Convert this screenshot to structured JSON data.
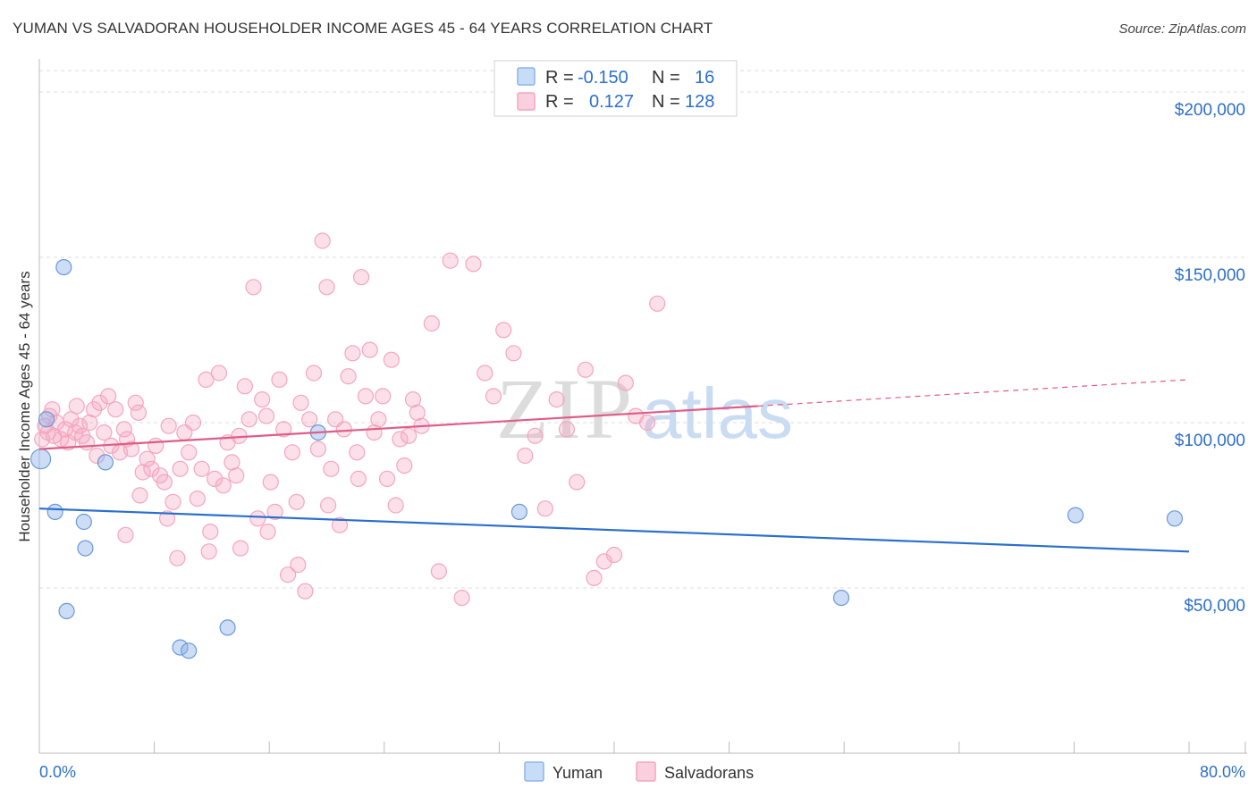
{
  "title": "YUMAN VS SALVADORAN HOUSEHOLDER INCOME AGES 45 - 64 YEARS CORRELATION CHART",
  "source": "Source: ZipAtlas.com",
  "watermark": {
    "zip": "ZIP",
    "atlas": "atlas"
  },
  "chart_data": {
    "type": "scatter",
    "title": "YUMAN VS SALVADORAN HOUSEHOLDER INCOME AGES 45 - 64 YEARS CORRELATION CHART",
    "xlabel": "",
    "ylabel": "Householder Income Ages 45 - 64 years",
    "xlim": [
      0,
      80
    ],
    "ylim": [
      0,
      210000
    ],
    "x_tick_labels": [
      "0.0%",
      "80.0%"
    ],
    "y_ticks": [
      {
        "value": 50000,
        "label": "$50,000"
      },
      {
        "value": 100000,
        "label": "$100,000"
      },
      {
        "value": 150000,
        "label": "$150,000"
      },
      {
        "value": 200000,
        "label": "$200,000"
      }
    ],
    "legend_stats": [
      {
        "r_label": "R =",
        "r_value": "-0.150",
        "n_label": "N =",
        "n_value": "16"
      },
      {
        "r_label": "R =",
        "r_value": "0.127",
        "n_label": "N =",
        "n_value": "128"
      }
    ],
    "series": [
      {
        "name": "Yuman",
        "color": "#8fb4e8",
        "trend_color": "#2a6fcf",
        "trend": {
          "x_start": 0,
          "y_start": 74000,
          "x_end": 80,
          "y_end": 61000
        },
        "points": [
          [
            0.1,
            89000
          ],
          [
            0.5,
            101000
          ],
          [
            1.1,
            73000
          ],
          [
            1.7,
            147000
          ],
          [
            1.9,
            43000
          ],
          [
            3.1,
            70000
          ],
          [
            3.2,
            62000
          ],
          [
            4.6,
            88000
          ],
          [
            9.8,
            32000
          ],
          [
            10.4,
            31000
          ],
          [
            13.1,
            38000
          ],
          [
            19.4,
            97000
          ],
          [
            33.4,
            73000
          ],
          [
            55.8,
            47000
          ],
          [
            72.1,
            72000
          ],
          [
            79.0,
            71000
          ]
        ]
      },
      {
        "name": "Salvadorans",
        "color": "#f4a6bf",
        "trend_color": "#e05c87",
        "trend": {
          "x_start": 0,
          "y_start": 92000,
          "x_end": 50,
          "y_end": 105000
        },
        "trend_dashed": {
          "x_start": 50,
          "y_start": 105000,
          "x_end": 80,
          "y_end": 113000
        },
        "points": [
          [
            0.2,
            95000
          ],
          [
            0.4,
            99000
          ],
          [
            0.6,
            97000
          ],
          [
            0.7,
            102000
          ],
          [
            0.9,
            104000
          ],
          [
            1.0,
            96000
          ],
          [
            1.2,
            100000
          ],
          [
            1.5,
            95000
          ],
          [
            1.8,
            98000
          ],
          [
            2.0,
            94000
          ],
          [
            2.2,
            101000
          ],
          [
            2.5,
            97000
          ],
          [
            2.8,
            99000
          ],
          [
            3.0,
            96000
          ],
          [
            3.3,
            94000
          ],
          [
            3.5,
            100000
          ],
          [
            3.8,
            104000
          ],
          [
            4.0,
            90000
          ],
          [
            4.2,
            106000
          ],
          [
            4.5,
            97000
          ],
          [
            4.8,
            108000
          ],
          [
            5.0,
            93000
          ],
          [
            5.3,
            104000
          ],
          [
            5.6,
            91000
          ],
          [
            5.9,
            98000
          ],
          [
            6.1,
            95000
          ],
          [
            6.4,
            92000
          ],
          [
            6.7,
            106000
          ],
          [
            6.9,
            103000
          ],
          [
            7.2,
            85000
          ],
          [
            7.5,
            89000
          ],
          [
            7.8,
            86000
          ],
          [
            8.1,
            93000
          ],
          [
            8.4,
            84000
          ],
          [
            8.7,
            82000
          ],
          [
            9.0,
            99000
          ],
          [
            9.3,
            76000
          ],
          [
            9.6,
            59000
          ],
          [
            9.8,
            86000
          ],
          [
            10.1,
            97000
          ],
          [
            10.4,
            91000
          ],
          [
            10.7,
            100000
          ],
          [
            11.0,
            77000
          ],
          [
            11.3,
            86000
          ],
          [
            11.6,
            113000
          ],
          [
            11.9,
            67000
          ],
          [
            12.2,
            83000
          ],
          [
            12.5,
            115000
          ],
          [
            12.8,
            81000
          ],
          [
            13.1,
            94000
          ],
          [
            13.4,
            88000
          ],
          [
            13.7,
            84000
          ],
          [
            14.0,
            62000
          ],
          [
            14.3,
            111000
          ],
          [
            14.6,
            101000
          ],
          [
            14.9,
            141000
          ],
          [
            15.2,
            71000
          ],
          [
            15.5,
            107000
          ],
          [
            15.8,
            102000
          ],
          [
            16.1,
            82000
          ],
          [
            16.4,
            73000
          ],
          [
            16.7,
            113000
          ],
          [
            17.0,
            98000
          ],
          [
            17.3,
            54000
          ],
          [
            17.6,
            91000
          ],
          [
            17.9,
            76000
          ],
          [
            18.2,
            106000
          ],
          [
            18.5,
            49000
          ],
          [
            18.8,
            101000
          ],
          [
            19.1,
            115000
          ],
          [
            19.4,
            92000
          ],
          [
            19.7,
            155000
          ],
          [
            20.0,
            141000
          ],
          [
            20.3,
            86000
          ],
          [
            20.6,
            101000
          ],
          [
            20.9,
            69000
          ],
          [
            21.2,
            98000
          ],
          [
            21.5,
            114000
          ],
          [
            21.8,
            121000
          ],
          [
            22.1,
            91000
          ],
          [
            22.4,
            144000
          ],
          [
            22.7,
            108000
          ],
          [
            23.0,
            122000
          ],
          [
            23.3,
            97000
          ],
          [
            23.6,
            101000
          ],
          [
            23.9,
            108000
          ],
          [
            24.2,
            83000
          ],
          [
            24.5,
            119000
          ],
          [
            24.8,
            75000
          ],
          [
            25.1,
            95000
          ],
          [
            25.4,
            87000
          ],
          [
            25.7,
            96000
          ],
          [
            26.0,
            107000
          ],
          [
            26.3,
            103000
          ],
          [
            26.6,
            99000
          ],
          [
            27.3,
            130000
          ],
          [
            27.8,
            55000
          ],
          [
            28.6,
            149000
          ],
          [
            29.4,
            47000
          ],
          [
            30.2,
            148000
          ],
          [
            31.0,
            115000
          ],
          [
            31.6,
            108000
          ],
          [
            32.3,
            128000
          ],
          [
            33.0,
            121000
          ],
          [
            33.8,
            90000
          ],
          [
            34.5,
            96000
          ],
          [
            35.2,
            74000
          ],
          [
            36.0,
            107000
          ],
          [
            36.7,
            98000
          ],
          [
            37.4,
            82000
          ],
          [
            38.0,
            116000
          ],
          [
            38.6,
            53000
          ],
          [
            39.3,
            58000
          ],
          [
            40.0,
            60000
          ],
          [
            40.8,
            112000
          ],
          [
            41.5,
            102000
          ],
          [
            42.3,
            100000
          ],
          [
            43.0,
            136000
          ],
          [
            2.6,
            105000
          ],
          [
            6.0,
            66000
          ],
          [
            7.0,
            78000
          ],
          [
            8.9,
            71000
          ],
          [
            11.8,
            61000
          ],
          [
            13.9,
            96000
          ],
          [
            15.9,
            67000
          ],
          [
            18.0,
            57000
          ],
          [
            20.1,
            75000
          ],
          [
            22.2,
            83000
          ]
        ]
      }
    ]
  }
}
